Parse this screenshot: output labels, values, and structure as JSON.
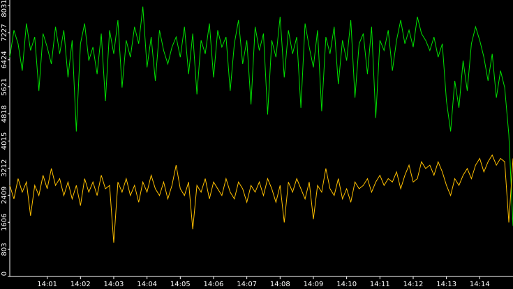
{
  "chart_data": {
    "type": "line",
    "categories": [
      null,
      null,
      null,
      null,
      null,
      null,
      null,
      null,
      null,
      "14:01",
      null,
      null,
      null,
      null,
      null,
      null,
      null,
      "14:02",
      null,
      null,
      null,
      null,
      null,
      null,
      null,
      "14:03",
      null,
      null,
      null,
      null,
      null,
      null,
      null,
      "14:04",
      null,
      null,
      null,
      null,
      null,
      null,
      null,
      "14:05",
      null,
      null,
      null,
      null,
      null,
      null,
      null,
      "14:06",
      null,
      null,
      null,
      null,
      null,
      null,
      null,
      "14:07",
      null,
      null,
      null,
      null,
      null,
      null,
      null,
      "14:08",
      null,
      null,
      null,
      null,
      null,
      null,
      null,
      "14:09",
      null,
      null,
      null,
      null,
      null,
      null,
      null,
      "14:10",
      null,
      null,
      null,
      null,
      null,
      null,
      null,
      "14:11",
      null,
      null,
      null,
      null,
      null,
      null,
      null,
      "14:12",
      null,
      null,
      null,
      null,
      null,
      null,
      null,
      "14:13",
      null,
      null,
      null,
      null,
      null,
      null,
      null,
      "14:14",
      null,
      null,
      null,
      null,
      null,
      null,
      null,
      null
    ],
    "series": [
      {
        "color": "#00e000",
        "values": [
          6500,
          7300,
          6900,
          6100,
          7500,
          6700,
          7100,
          5500,
          7200,
          6800,
          6300,
          7400,
          6600,
          7300,
          5900,
          7000,
          4300,
          6900,
          7500,
          6400,
          6800,
          6000,
          7200,
          5200,
          7300,
          6600,
          7600,
          5600,
          7000,
          6500,
          7400,
          6900,
          8000,
          6200,
          7100,
          5800,
          7300,
          6700,
          6300,
          6800,
          7100,
          6500,
          7400,
          6000,
          7200,
          5400,
          7000,
          6600,
          7500,
          5900,
          7300,
          6800,
          7100,
          5500,
          6900,
          7600,
          6300,
          7000,
          5100,
          7400,
          6700,
          7200,
          4800,
          7000,
          6500,
          7700,
          5900,
          7300,
          6600,
          7100,
          5000,
          7500,
          6800,
          6200,
          7300,
          4900,
          7100,
          6600,
          7400,
          5700,
          7000,
          6400,
          7600,
          5300,
          6900,
          7200,
          6000,
          7400,
          4700,
          7000,
          6700,
          7300,
          6100,
          7000,
          7600,
          6900,
          7300,
          6800,
          7700,
          7200,
          7000,
          6700,
          7100,
          6500,
          6900,
          5200,
          4300,
          5800,
          5000,
          6400,
          5500,
          6900,
          7400,
          7000,
          6500,
          5800,
          6600,
          5300,
          6100,
          5600,
          4200,
          1500
        ]
      },
      {
        "color": "#ffc000",
        "values": [
          2700,
          2300,
          2900,
          2500,
          2800,
          1800,
          2700,
          2400,
          3000,
          2600,
          3200,
          2700,
          2900,
          2400,
          2800,
          2300,
          2700,
          2100,
          2900,
          2500,
          2800,
          2400,
          3000,
          2600,
          2700,
          1000,
          2800,
          2500,
          2900,
          2400,
          2700,
          2200,
          2800,
          2500,
          3000,
          2600,
          2400,
          2800,
          2300,
          2700,
          3300,
          2600,
          2400,
          2800,
          1400,
          2700,
          2500,
          2900,
          2300,
          2800,
          2600,
          2400,
          2900,
          2500,
          2300,
          2800,
          2600,
          2200,
          2700,
          2500,
          2800,
          2400,
          2900,
          2600,
          2200,
          2700,
          1600,
          2800,
          2500,
          2900,
          2600,
          2300,
          2800,
          1700,
          2700,
          2500,
          3200,
          2600,
          2400,
          2900,
          2300,
          2600,
          2200,
          2800,
          2600,
          2700,
          2900,
          2500,
          2800,
          3000,
          2700,
          2900,
          2800,
          3100,
          2600,
          3000,
          3300,
          2800,
          2900,
          3400,
          3200,
          3300,
          3000,
          3400,
          3100,
          2700,
          2400,
          2900,
          2700,
          3000,
          3200,
          2900,
          3300,
          3500,
          3100,
          3400,
          3600,
          3300,
          3500,
          3400,
          1600,
          3500
        ]
      }
    ],
    "ylim": [
      0,
      8031
    ],
    "yticks": [
      0,
      803,
      1606,
      2409,
      3212,
      4015,
      4818,
      5621,
      6424,
      7227,
      8031
    ]
  }
}
